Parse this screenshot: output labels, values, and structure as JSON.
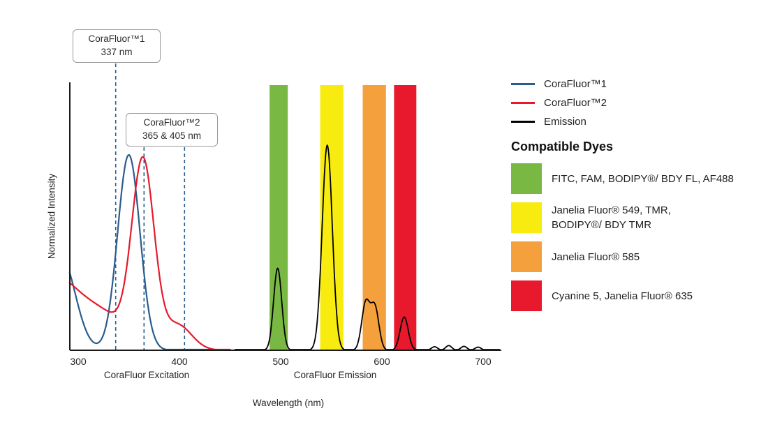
{
  "figure": {
    "background": "#ffffff"
  },
  "colors": {
    "text": "#231f20",
    "axis": "#1a1a1a",
    "corafluor1_blue": "#2a5d8c",
    "corafluor2_red": "#e8192c",
    "emission_black": "#000000",
    "band_green": "#79b843",
    "band_yellow": "#f7eb0f",
    "band_orange": "#f4a03d",
    "band_red": "#e8192c",
    "callout_border": "#9a9a9a"
  },
  "chart_data": {
    "type": "line",
    "x_axis": {
      "label": "Wavelength (nm)",
      "ticks": [
        300,
        400,
        500,
        600,
        700
      ],
      "range": [
        300,
        718
      ]
    },
    "y_axis": {
      "label": "Normalized Intensity",
      "range": [
        0,
        1.1
      ]
    },
    "section_labels": {
      "excitation": "CoraFluor Excitation",
      "emission": "CoraFluor Emission"
    },
    "markers": [
      {
        "title": "CoraFluor™1",
        "subtitle": "337 nm",
        "lines_nm": [
          337
        ]
      },
      {
        "title": "CoraFluor™2",
        "subtitle": "365 & 405 nm",
        "lines_nm": [
          365,
          405
        ]
      }
    ],
    "bands": [
      {
        "name": "green",
        "nm": [
          489,
          507
        ],
        "color_key": "band_green"
      },
      {
        "name": "yellow",
        "nm": [
          539,
          562
        ],
        "color_key": "band_yellow"
      },
      {
        "name": "orange",
        "nm": [
          581,
          604
        ],
        "color_key": "band_orange"
      },
      {
        "name": "red",
        "nm": [
          612,
          634
        ],
        "color_key": "band_red"
      }
    ],
    "series": [
      {
        "name": "CoraFluor™1",
        "kind": "excitation",
        "color_key": "corafluor1_blue",
        "nm_domain": [
          291.5,
          432
        ],
        "components": [
          {
            "mu": 350,
            "sigma": 11,
            "amp": 1.0
          },
          {
            "mu": 283,
            "sigma": 14,
            "amp": 0.48
          }
        ]
      },
      {
        "name": "CoraFluor™2",
        "kind": "excitation",
        "color_key": "corafluor2_red",
        "nm_domain": [
          291.5,
          450
        ],
        "components": [
          {
            "mu": 364,
            "sigma": 11,
            "amp": 0.95
          },
          {
            "mu": 275,
            "sigma": 30,
            "amp": 0.38
          },
          {
            "mu": 330,
            "sigma": 20,
            "amp": 0.12
          },
          {
            "mu": 398,
            "sigma": 14,
            "amp": 0.13
          }
        ]
      },
      {
        "name": "Emission",
        "kind": "emission",
        "color_key": "emission_black",
        "nm_domain": [
          455,
          716
        ],
        "components": [
          {
            "mu": 497,
            "sigma": 4,
            "amp": 0.42
          },
          {
            "mu": 546,
            "sigma": 5,
            "amp": 1.05
          },
          {
            "mu": 584,
            "sigma": 4,
            "amp": 0.24
          },
          {
            "mu": 593,
            "sigma": 4,
            "amp": 0.22
          },
          {
            "mu": 622,
            "sigma": 4,
            "amp": 0.17
          },
          {
            "mu": 652,
            "sigma": 3,
            "amp": 0.018
          },
          {
            "mu": 666,
            "sigma": 3,
            "amp": 0.024
          },
          {
            "mu": 681,
            "sigma": 3,
            "amp": 0.02
          },
          {
            "mu": 695,
            "sigma": 3,
            "amp": 0.016
          }
        ]
      }
    ]
  },
  "legend": {
    "series": [
      {
        "label": "CoraFluor™1",
        "color_key": "corafluor1_blue"
      },
      {
        "label": "CoraFluor™2",
        "color_key": "corafluor2_red"
      },
      {
        "label": "Emission",
        "color_key": "emission_black"
      }
    ],
    "heading": "Compatible Dyes",
    "dyes": [
      {
        "name": "green-dyes",
        "color_key": "band_green",
        "lines": [
          "FITC, FAM, BODIPY®/ BDY FL, AF488"
        ]
      },
      {
        "name": "yellow-dyes",
        "color_key": "band_yellow",
        "lines": [
          "Janelia Fluor® 549, TMR,",
          "BODIPY®/ BDY TMR"
        ]
      },
      {
        "name": "orange-dyes",
        "color_key": "band_orange",
        "lines": [
          "Janelia Fluor® 585"
        ]
      },
      {
        "name": "red-dyes",
        "color_key": "band_red",
        "lines": [
          "Cyanine 5, Janelia Fluor® 635"
        ]
      }
    ]
  }
}
